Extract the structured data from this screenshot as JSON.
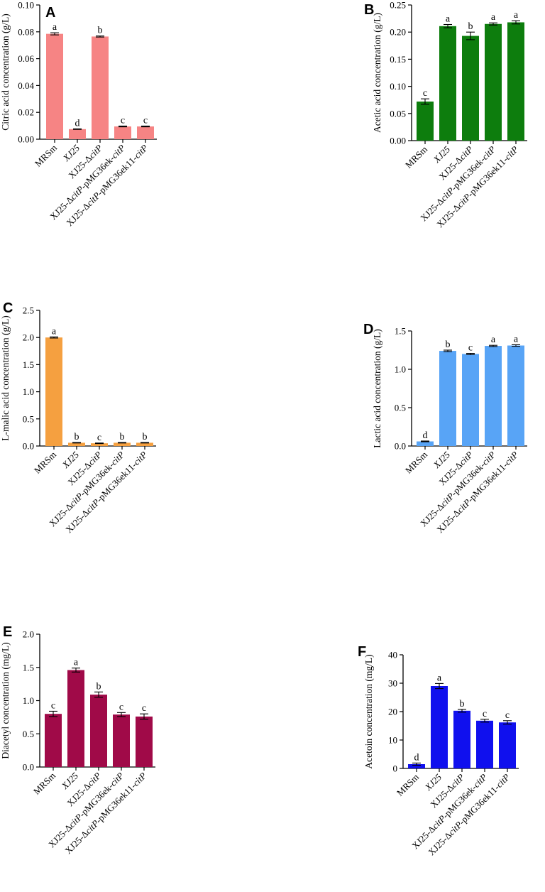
{
  "chart_data": [
    {
      "panel": "A",
      "type": "bar",
      "ylabel": "Citric acid concentration (g/L)",
      "ylim": [
        0,
        0.1
      ],
      "yticks": [
        "0.00",
        "0.02",
        "0.04",
        "0.06",
        "0.08",
        "0.10"
      ],
      "color": "#f68484",
      "categories": [
        {
          "text": "MRSm",
          "italic": ""
        },
        {
          "text": "XJ25",
          "italic": ""
        },
        {
          "text": "XJ25-Δ",
          "italic": "citP"
        },
        {
          "text": "XJ25-Δ",
          "italic": "citP",
          "suffix": "-pMG36ek-",
          "italic2": "citP"
        },
        {
          "text": "XJ25-Δ",
          "italic": "citP",
          "suffix": "-pMG36ek11-",
          "italic2": "citP"
        }
      ],
      "values": [
        0.0785,
        0.0075,
        0.0765,
        0.0095,
        0.0095
      ],
      "errors": [
        0.0008,
        0.0002,
        0.0004,
        0.0003,
        0.0003
      ],
      "letters": [
        "a",
        "d",
        "b",
        "c",
        "c"
      ]
    },
    {
      "panel": "B",
      "type": "bar",
      "ylabel": "Acetic acid concentration (g/L)",
      "ylim": [
        0,
        0.25
      ],
      "yticks": [
        "0.00",
        "0.05",
        "0.10",
        "0.15",
        "0.20",
        "0.25"
      ],
      "color": "#0d7d0d",
      "categories": [
        {
          "text": "MRSm",
          "italic": ""
        },
        {
          "text": "XJ25",
          "italic": ""
        },
        {
          "text": "XJ25-Δ",
          "italic": "citP"
        },
        {
          "text": "XJ25-Δ",
          "italic": "citP",
          "suffix": "-pMG36ek-",
          "italic2": "citP"
        },
        {
          "text": "XJ25-Δ",
          "italic": "citP",
          "suffix": "-pMG36ek11-",
          "italic2": "citP"
        }
      ],
      "values": [
        0.072,
        0.211,
        0.193,
        0.215,
        0.218
      ],
      "errors": [
        0.005,
        0.003,
        0.007,
        0.002,
        0.003
      ],
      "letters": [
        "c",
        "a",
        "b",
        "a",
        "a"
      ]
    },
    {
      "panel": "C",
      "type": "bar",
      "ylabel": "L-malic acid concentration (g/L)",
      "ylim": [
        0,
        2.5
      ],
      "yticks": [
        "0.0",
        "0.5",
        "1.0",
        "1.5",
        "2.0",
        "2.5"
      ],
      "color": "#f5a040",
      "categories": [
        {
          "text": "MRSm",
          "italic": ""
        },
        {
          "text": "XJ25",
          "italic": ""
        },
        {
          "text": "XJ25-Δ",
          "italic": "citP"
        },
        {
          "text": "XJ25-Δ",
          "italic": "citP",
          "suffix": "-pMG36ek-",
          "italic2": "citP"
        },
        {
          "text": "XJ25-Δ",
          "italic": "citP",
          "suffix": "-pMG36ek11-",
          "italic2": "citP"
        }
      ],
      "values": [
        2.0,
        0.06,
        0.05,
        0.06,
        0.06
      ],
      "errors": [
        0.01,
        0.005,
        0.005,
        0.005,
        0.005
      ],
      "letters": [
        "a",
        "b",
        "c",
        "b",
        "b"
      ]
    },
    {
      "panel": "D",
      "type": "bar",
      "ylabel": "Lactic acid concentration (g/L)",
      "ylim": [
        0,
        1.5
      ],
      "yticks": [
        "0.0",
        "0.5",
        "1.0",
        "1.5"
      ],
      "color": "#58a4f6",
      "categories": [
        {
          "text": "MRSm",
          "italic": ""
        },
        {
          "text": "XJ25",
          "italic": ""
        },
        {
          "text": "XJ25-Δ",
          "italic": "citP"
        },
        {
          "text": "XJ25-Δ",
          "italic": "citP",
          "suffix": "-pMG36ek-",
          "italic2": "citP"
        },
        {
          "text": "XJ25-Δ",
          "italic": "citP",
          "suffix": "-pMG36ek11-",
          "italic2": "citP"
        }
      ],
      "values": [
        0.06,
        1.24,
        1.2,
        1.305,
        1.31
      ],
      "errors": [
        0.005,
        0.01,
        0.008,
        0.008,
        0.01
      ],
      "letters": [
        "d",
        "b",
        "c",
        "a",
        "a"
      ]
    },
    {
      "panel": "E",
      "type": "bar",
      "ylabel": "Diacetyl concentration (mg/L)",
      "ylim": [
        0,
        2.0
      ],
      "yticks": [
        "0.0",
        "0.5",
        "1.0",
        "1.5",
        "2.0"
      ],
      "color": "#a00a48",
      "categories": [
        {
          "text": "MRSm",
          "italic": ""
        },
        {
          "text": "XJ25",
          "italic": ""
        },
        {
          "text": "XJ25-Δ",
          "italic": "citP"
        },
        {
          "text": "XJ25-Δ",
          "italic": "citP",
          "suffix": "-pMG36ek-",
          "italic2": "citP"
        },
        {
          "text": "XJ25-Δ",
          "italic": "citP",
          "suffix": "-pMG36ek11-",
          "italic2": "citP"
        }
      ],
      "values": [
        0.8,
        1.46,
        1.09,
        0.79,
        0.76
      ],
      "errors": [
        0.04,
        0.03,
        0.04,
        0.03,
        0.04
      ],
      "letters": [
        "c",
        "a",
        "b",
        "c",
        "c"
      ]
    },
    {
      "panel": "F",
      "type": "bar",
      "ylabel": "Acetoin concentration (mg/L)",
      "ylim": [
        0,
        40
      ],
      "yticks": [
        "0",
        "10",
        "20",
        "30",
        "40"
      ],
      "color": "#1010ee",
      "categories": [
        {
          "text": "MRSm",
          "italic": ""
        },
        {
          "text": "XJ25",
          "italic": ""
        },
        {
          "text": "XJ25-Δ",
          "italic": "citP"
        },
        {
          "text": "XJ25-Δ",
          "italic": "citP",
          "suffix": "-pMG36ek-",
          "italic2": "citP"
        },
        {
          "text": "XJ25-Δ",
          "italic": "citP",
          "suffix": "-pMG36ek11-",
          "italic2": "citP"
        }
      ],
      "values": [
        1.5,
        29.0,
        20.3,
        16.8,
        16.2
      ],
      "errors": [
        0.4,
        0.9,
        0.5,
        0.5,
        0.6
      ],
      "letters": [
        "d",
        "a",
        "b",
        "c",
        "c"
      ]
    }
  ]
}
